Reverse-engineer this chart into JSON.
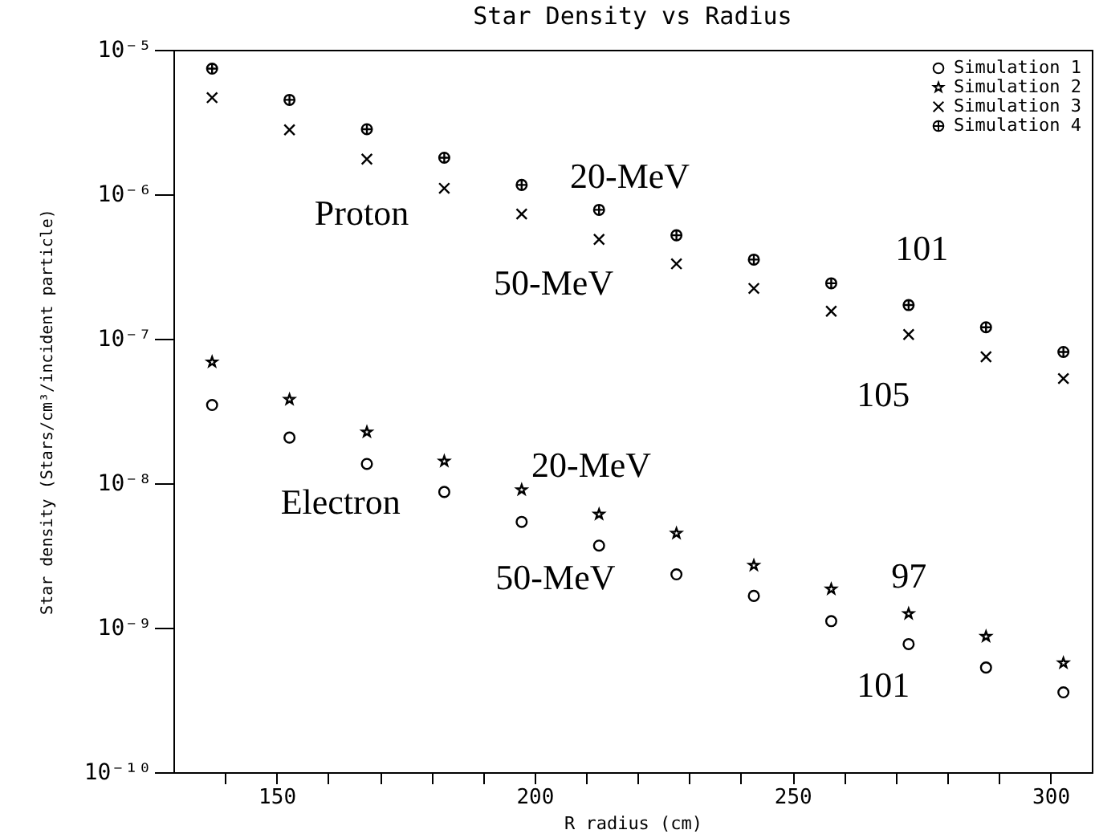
{
  "chart_data": {
    "type": "scatter",
    "title": "Star Density vs Radius",
    "xlabel": "R radius (cm)",
    "ylabel": "Star density (Stars/cm³/incident particle)",
    "x": [
      137.5,
      152.5,
      167.5,
      182.5,
      197.5,
      212.5,
      227.5,
      242.5,
      257.5,
      272.5,
      287.5,
      302.5
    ],
    "series": [
      {
        "name": "Simulation 1",
        "color": "#000000",
        "marker": "circle",
        "values": [
          3.48e-08,
          2.07e-08,
          1.36e-08,
          8.7e-09,
          5.4e-09,
          3.7e-09,
          2.34e-09,
          1.66e-09,
          1.11e-09,
          7.7e-10,
          5.3e-10,
          3.57e-10
        ]
      },
      {
        "name": "Simulation 2",
        "color": "#000000",
        "marker": "star",
        "values": [
          6.9e-08,
          3.8e-08,
          2.26e-08,
          1.42e-08,
          9e-09,
          6.1e-09,
          4.5e-09,
          2.7e-09,
          1.85e-09,
          1.25e-09,
          8.7e-10,
          5.7e-10
        ]
      },
      {
        "name": "Simulation 3",
        "color": "#000000",
        "marker": "cross",
        "values": [
          4.66e-06,
          2.79e-06,
          1.75e-06,
          1.1e-06,
          7.3e-07,
          4.87e-07,
          3.3e-07,
          2.23e-07,
          1.55e-07,
          1.07e-07,
          7.5e-08,
          5.3e-08
        ]
      },
      {
        "name": "Simulation 4",
        "color": "#000000",
        "values": [
          7.4e-06,
          4.5e-06,
          2.82e-06,
          1.79e-06,
          1.16e-06,
          7.8e-07,
          5.2e-07,
          3.53e-07,
          2.42e-07,
          1.71e-07,
          1.2e-07,
          8.1e-08
        ]
      }
    ],
    "log": "y",
    "xlim": [
      130,
      308
    ],
    "ylim": [
      1e-10,
      1e-05
    ],
    "xticks": [
      {
        "value": 140,
        "label": null
      },
      150,
      {
        "value": 160,
        "label": null
      },
      {
        "value": 170,
        "label": null
      },
      {
        "value": 180,
        "label": null
      },
      {
        "value": 190,
        "label": null
      },
      200,
      {
        "value": 210,
        "label": null
      },
      {
        "value": 220,
        "label": null
      },
      {
        "value": 230,
        "label": null
      },
      {
        "value": 240,
        "label": null
      },
      250,
      {
        "value": 260,
        "label": null
      },
      {
        "value": 270,
        "label": null
      },
      {
        "value": 280,
        "label": null
      },
      {
        "value": 290,
        "label": null
      },
      300
    ],
    "yticks": [
      {
        "value": 1e-10,
        "label": "10⁻¹⁰"
      },
      {
        "value": 1e-09,
        "label": "10⁻⁹"
      },
      {
        "value": 1e-08,
        "label": "10⁻⁸"
      },
      {
        "value": 1e-07,
        "label": "10⁻⁷"
      },
      {
        "value": 1e-06,
        "label": "10⁻⁶"
      },
      {
        "value": 1e-05,
        "label": "10⁻⁵"
      }
    ],
    "legend": "top right",
    "grid": false,
    "annotations": [
      "Proton",
      "20-MeV",
      "50-MeV",
      "101",
      "105",
      "Electron",
      "20-MeV",
      "50-MeV",
      "97",
      "101"
    ]
  }
}
